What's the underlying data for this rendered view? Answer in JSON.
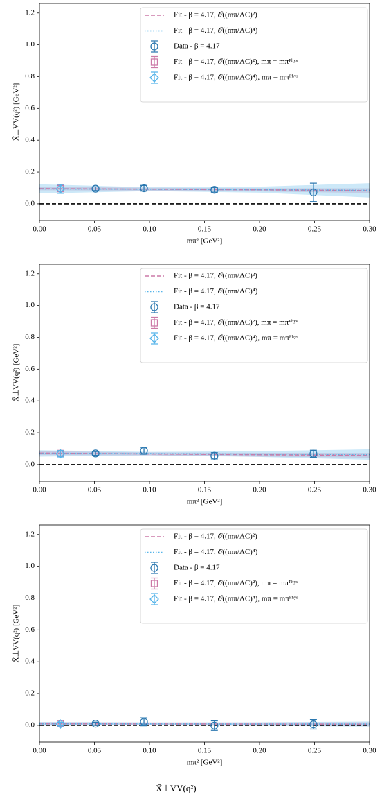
{
  "chart_data": [
    {
      "type": "errorbar",
      "xlabel": "mπ² [GeV²]",
      "ylabel": "X̄⊥VV(q²) [GeV²]",
      "xlim": [
        0,
        0.3
      ],
      "xticks": [
        {
          "value": 0,
          "label": "0.00"
        },
        0.05,
        {
          "value": 0.1,
          "label": "0.10"
        },
        0.15,
        {
          "value": 0.2,
          "label": "0.20"
        },
        0.25,
        {
          "value": 0.3,
          "label": "0.30"
        }
      ],
      "ylim": [
        -0.105,
        1.26
      ],
      "yticks": [
        {
          "value": 0,
          "label": "0.0"
        },
        0.2,
        0.4,
        0.6,
        0.8,
        {
          "value": 1,
          "label": "1.0"
        },
        1.2
      ],
      "hline": 0,
      "series": [
        {
          "name": "Fit - β = 4.17, 𝒪((mπ/ΛC)²)",
          "color": "#cc79a7",
          "kind": "fit",
          "linestyle": "dashed",
          "x": [
            0,
            0.1,
            0.2,
            0.3
          ],
          "values": [
            0.096,
            0.092,
            0.088,
            0.083
          ],
          "band_lower": [
            0.085,
            0.083,
            0.078,
            0.068
          ],
          "band_upper": [
            0.107,
            0.101,
            0.098,
            0.098
          ]
        },
        {
          "name": "Fit - β = 4.17, 𝒪((mπ/ΛC)⁴)",
          "color": "#56b4e9",
          "kind": "fit",
          "linestyle": "dotted",
          "x": [
            0,
            0.1,
            0.2,
            0.3
          ],
          "values": [
            0.094,
            0.092,
            0.089,
            0.085
          ],
          "band_lower": [
            0.065,
            0.08,
            0.07,
            0.04
          ],
          "band_upper": [
            0.123,
            0.104,
            0.108,
            0.13
          ]
        },
        {
          "name": "Data - β = 4.17",
          "color": "#2b78b0",
          "kind": "points",
          "marker": "circle",
          "x": [
            0.051,
            0.095,
            0.159,
            0.249
          ],
          "values": [
            0.095,
            0.098,
            0.088,
            0.072
          ],
          "errors": [
            0.012,
            0.018,
            0.015,
            0.058
          ]
        },
        {
          "name": "Fit - β = 4.17, 𝒪((mπ/ΛC)²), mπ = mπᴾʰʸˢ",
          "color": "#cc79a7",
          "kind": "points",
          "marker": "square",
          "x": [
            0.019
          ],
          "values": [
            0.096
          ],
          "errors": [
            0.02
          ]
        },
        {
          "name": "Fit - β = 4.17, 𝒪((mπ/ΛC)⁴), mπ = mπᴾʰʸˢ",
          "color": "#56b4e9",
          "kind": "points",
          "marker": "diamond",
          "x": [
            0.019
          ],
          "values": [
            0.094
          ],
          "errors": [
            0.028
          ]
        }
      ]
    },
    {
      "type": "errorbar",
      "xlabel": "mπ² [GeV²]",
      "ylabel": "X̄⊥VV(q²) [GeV²]",
      "xlim": [
        0,
        0.3
      ],
      "xticks": [
        {
          "value": 0,
          "label": "0.00"
        },
        0.05,
        {
          "value": 0.1,
          "label": "0.10"
        },
        0.15,
        {
          "value": 0.2,
          "label": "0.20"
        },
        0.25,
        {
          "value": 0.3,
          "label": "0.30"
        }
      ],
      "ylim": [
        -0.105,
        1.26
      ],
      "yticks": [
        {
          "value": 0,
          "label": "0.0"
        },
        0.2,
        0.4,
        0.6,
        0.8,
        {
          "value": 1,
          "label": "1.0"
        },
        1.2
      ],
      "hline": 0,
      "series": [
        {
          "name": "Fit - β = 4.17, 𝒪((mπ/ΛC)²)",
          "color": "#cc79a7",
          "kind": "fit",
          "linestyle": "dashed",
          "x": [
            0,
            0.1,
            0.2,
            0.3
          ],
          "values": [
            0.072,
            0.067,
            0.062,
            0.058
          ],
          "band_lower": [
            0.06,
            0.058,
            0.05,
            0.043
          ],
          "band_upper": [
            0.084,
            0.076,
            0.074,
            0.073
          ]
        },
        {
          "name": "Fit - β = 4.17, 𝒪((mπ/ΛC)⁴)",
          "color": "#56b4e9",
          "kind": "fit",
          "linestyle": "dotted",
          "x": [
            0,
            0.1,
            0.2,
            0.3
          ],
          "values": [
            0.07,
            0.069,
            0.066,
            0.063
          ],
          "band_lower": [
            0.05,
            0.058,
            0.048,
            0.03
          ],
          "band_upper": [
            0.09,
            0.08,
            0.084,
            0.096
          ]
        },
        {
          "name": "Data - β = 4.17",
          "color": "#2b78b0",
          "kind": "points",
          "marker": "circle",
          "x": [
            0.051,
            0.095,
            0.159,
            0.249
          ],
          "values": [
            0.07,
            0.087,
            0.055,
            0.068
          ],
          "errors": [
            0.012,
            0.022,
            0.02,
            0.022
          ]
        },
        {
          "name": "Fit - β = 4.17, 𝒪((mπ/ΛC)²), mπ = mπᴾʰʸˢ",
          "color": "#cc79a7",
          "kind": "points",
          "marker": "square",
          "x": [
            0.019
          ],
          "values": [
            0.07
          ],
          "errors": [
            0.015
          ]
        },
        {
          "name": "Fit - β = 4.17, 𝒪((mπ/ΛC)⁴), mπ = mπᴾʰʸˢ",
          "color": "#56b4e9",
          "kind": "points",
          "marker": "diamond",
          "x": [
            0.019
          ],
          "values": [
            0.068
          ],
          "errors": [
            0.02
          ]
        }
      ]
    },
    {
      "type": "errorbar",
      "xlabel": "mπ² [GeV²]",
      "ylabel": "X̄⊥VV(q²) [GeV²]",
      "xlim": [
        0,
        0.3
      ],
      "xticks": [
        {
          "value": 0,
          "label": "0.00"
        },
        0.05,
        {
          "value": 0.1,
          "label": "0.10"
        },
        0.15,
        {
          "value": 0.2,
          "label": "0.20"
        },
        0.25,
        {
          "value": 0.3,
          "label": "0.30"
        }
      ],
      "ylim": [
        -0.105,
        1.26
      ],
      "yticks": [
        {
          "value": 0,
          "label": "0.0"
        },
        0.2,
        0.4,
        0.6,
        0.8,
        {
          "value": 1,
          "label": "1.0"
        },
        1.2
      ],
      "hline": 0,
      "series": [
        {
          "name": "Fit - β = 4.17, 𝒪((mπ/ΛC)²)",
          "color": "#cc79a7",
          "kind": "fit",
          "linestyle": "dashed",
          "x": [
            0,
            0.1,
            0.2,
            0.3
          ],
          "values": [
            0.01,
            0.009,
            0.008,
            0.007
          ],
          "band_lower": [
            0.0,
            0.0,
            -0.002,
            -0.005
          ],
          "band_upper": [
            0.02,
            0.018,
            0.018,
            0.019
          ]
        },
        {
          "name": "Fit - β = 4.17, 𝒪((mπ/ΛC)⁴)",
          "color": "#56b4e9",
          "kind": "fit",
          "linestyle": "dotted",
          "x": [
            0,
            0.1,
            0.2,
            0.3
          ],
          "values": [
            0.009,
            0.009,
            0.008,
            0.008
          ],
          "band_lower": [
            -0.003,
            0.0,
            -0.003,
            -0.008
          ],
          "band_upper": [
            0.021,
            0.018,
            0.019,
            0.024
          ]
        },
        {
          "name": "Data - β = 4.17",
          "color": "#2b78b0",
          "kind": "points",
          "marker": "circle",
          "x": [
            0.051,
            0.095,
            0.159,
            0.249
          ],
          "values": [
            0.01,
            0.022,
            -0.002,
            0.006
          ],
          "errors": [
            0.01,
            0.025,
            0.03,
            0.03
          ]
        },
        {
          "name": "Fit - β = 4.17, 𝒪((mπ/ΛC)²), mπ = mπᴾʰʸˢ",
          "color": "#cc79a7",
          "kind": "points",
          "marker": "square",
          "x": [
            0.019
          ],
          "values": [
            0.01
          ],
          "errors": [
            0.01
          ]
        },
        {
          "name": "Fit - β = 4.17, 𝒪((mπ/ΛC)⁴), mπ = mπᴾʰʸˢ",
          "color": "#56b4e9",
          "kind": "points",
          "marker": "diamond",
          "x": [
            0.019
          ],
          "values": [
            0.008
          ],
          "errors": [
            0.012
          ]
        }
      ]
    }
  ],
  "caption": "X̄⊥VV(q²)"
}
